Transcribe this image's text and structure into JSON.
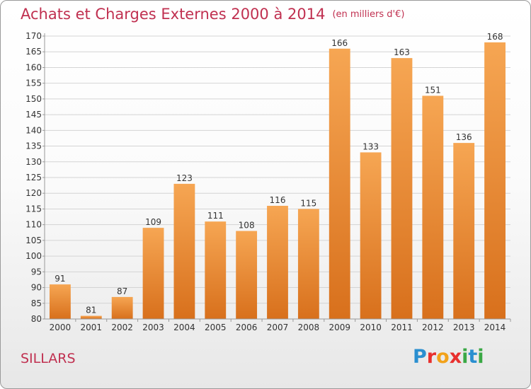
{
  "header": {
    "title": "Achats et Charges Externes 2000 à 2014",
    "unit": "(en milliers d'€)"
  },
  "commune": "SILLARS",
  "logo": {
    "text": "Proxiti",
    "letters": [
      {
        "ch": "P",
        "color": "#2a8fd0"
      },
      {
        "ch": "r",
        "color": "#e8302e"
      },
      {
        "ch": "o",
        "color": "#f2a21a"
      },
      {
        "ch": "x",
        "color": "#e8302e"
      },
      {
        "ch": "i",
        "color": "#3aa845"
      },
      {
        "ch": "t",
        "color": "#2a8fd0"
      },
      {
        "ch": "i",
        "color": "#3aa845"
      }
    ]
  },
  "colors": {
    "bar_top": "#f6a653",
    "bar_bottom": "#d8701c",
    "title": "#c03050",
    "grid": "#d4d4d4",
    "axis": "#999999",
    "text": "#333333"
  },
  "chart_data": {
    "type": "bar",
    "categories": [
      "2000",
      "2001",
      "2002",
      "2003",
      "2004",
      "2005",
      "2006",
      "2007",
      "2008",
      "2009",
      "2010",
      "2011",
      "2012",
      "2013",
      "2014"
    ],
    "values": [
      91,
      81,
      87,
      109,
      123,
      111,
      108,
      116,
      115,
      166,
      133,
      163,
      151,
      136,
      168
    ],
    "data_labels": [
      "91",
      "81",
      "87",
      "109",
      "123",
      "111",
      "108",
      "116",
      "115",
      "166",
      "133",
      "163",
      "151",
      "136",
      "168"
    ],
    "ylim": [
      80,
      170
    ],
    "yticks": [
      80,
      85,
      90,
      95,
      100,
      105,
      110,
      115,
      120,
      125,
      130,
      135,
      140,
      145,
      150,
      155,
      160,
      165,
      170
    ],
    "grid": true,
    "legend": "none"
  }
}
